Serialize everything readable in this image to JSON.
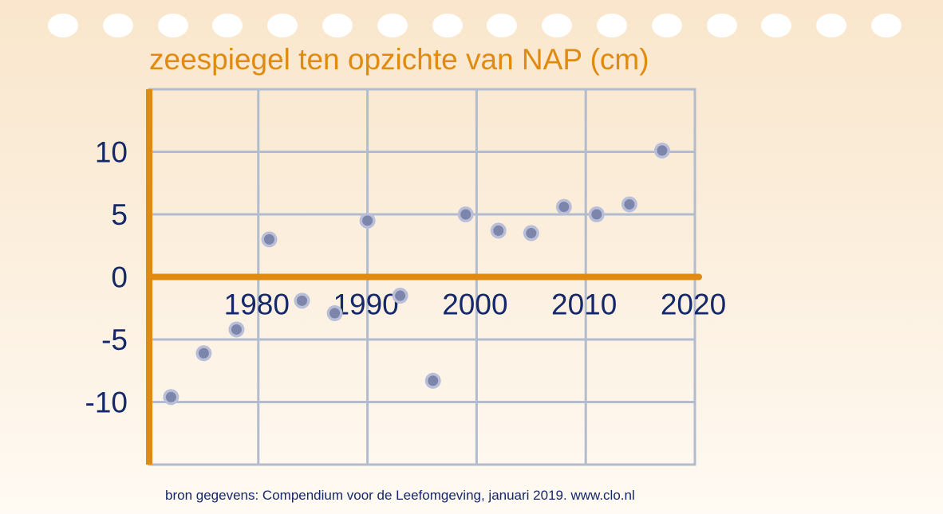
{
  "chart_data": {
    "type": "scatter",
    "title": "zeespiegel ten opzichte van NAP (cm)",
    "xlim": [
      1970,
      2020
    ],
    "ylim": [
      -15,
      15
    ],
    "x_ticks": [
      1980,
      1990,
      2000,
      2010,
      2020
    ],
    "y_ticks": [
      10,
      5,
      0,
      -5,
      -10
    ],
    "grid": true,
    "series": [
      {
        "x": [
          1972,
          1975,
          1978,
          1981,
          1984,
          1987,
          1990,
          1993,
          1996,
          1999,
          2002,
          2005,
          2008,
          2011,
          2014,
          2017
        ],
        "y": [
          -9.6,
          -6.1,
          -4.2,
          3.0,
          -1.9,
          -2.9,
          4.5,
          -1.5,
          -8.3,
          5.0,
          3.7,
          3.5,
          5.6,
          5.0,
          5.8,
          10.1
        ]
      }
    ]
  },
  "footer": {
    "source": "bron gegevens: Compendium voor de Leefomgeving, januari 2019. www.clo.nl"
  },
  "colors": {
    "axis": "#e08a10",
    "grid": "#b2bccf",
    "text": "#14286a",
    "point_fill": "#7d85aa",
    "point_ring": "#b9bfd8",
    "holes": "#ffffff"
  }
}
